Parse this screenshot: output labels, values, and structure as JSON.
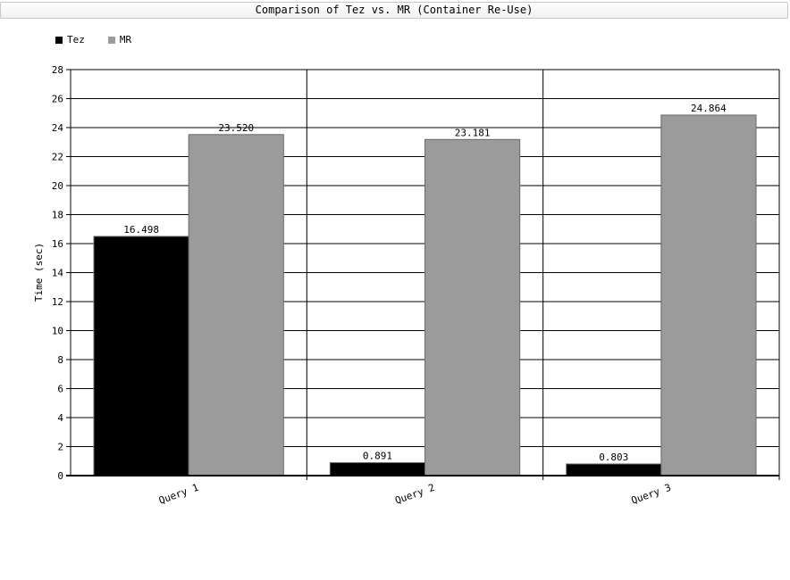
{
  "chart_data": {
    "type": "bar",
    "title": "Comparison of Tez vs. MR (Container Re-Use)",
    "ylabel": "Time (sec)",
    "xlabel": "",
    "categories": [
      "Query 1",
      "Query 2",
      "Query 3"
    ],
    "series": [
      {
        "name": "Tez",
        "color": "#000000",
        "values": [
          16.498,
          0.891,
          0.803
        ],
        "labels": [
          "16.498",
          "0.891",
          "0.803"
        ]
      },
      {
        "name": "MR",
        "color": "#9b9b9b",
        "values": [
          23.52,
          23.181,
          24.864
        ],
        "labels": [
          "23.520",
          "23.181",
          "24.864"
        ]
      }
    ],
    "ylim": [
      0,
      28
    ],
    "yticks": [
      "0",
      "2",
      "4",
      "6",
      "8",
      "10",
      "12",
      "14",
      "16",
      "18",
      "20",
      "22",
      "24",
      "26",
      "28"
    ],
    "grid": true,
    "legend_position": "top-left"
  }
}
